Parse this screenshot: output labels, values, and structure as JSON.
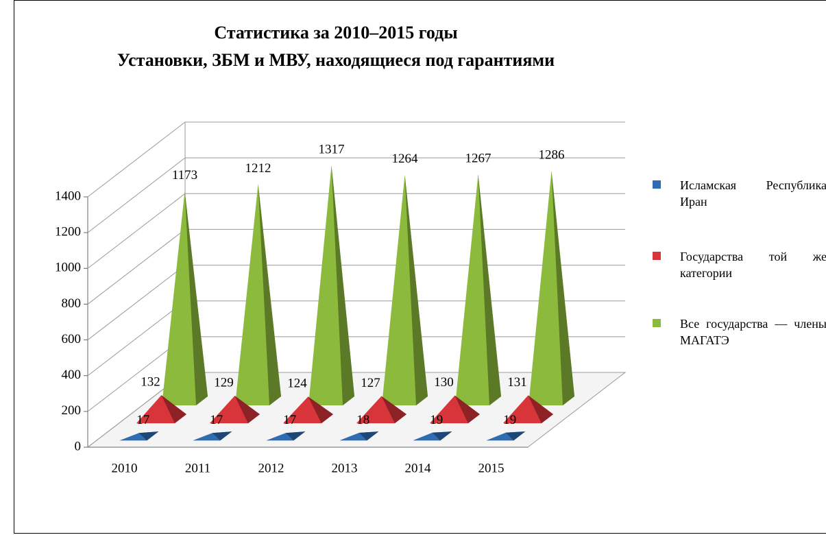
{
  "chart_data": {
    "type": "pyramid3d",
    "title": "Статистика за 2010–2015 годы",
    "subtitle": "Установки, ЗБМ и МВУ, находящиеся под гарантиями",
    "categories": [
      "2010",
      "2011",
      "2012",
      "2013",
      "2014",
      "2015"
    ],
    "series": [
      {
        "name": "Исламская Республика Иран",
        "color": "#2e6db4",
        "values": [
          17,
          17,
          17,
          18,
          19,
          19
        ]
      },
      {
        "name": "Государства той же категории",
        "color": "#d7353a",
        "values": [
          132,
          129,
          124,
          127,
          130,
          131
        ]
      },
      {
        "name": "Все государства — члены МАГАТЭ",
        "color": "#8cba3c",
        "values": [
          1173,
          1212,
          1317,
          1264,
          1267,
          1286
        ]
      }
    ],
    "ylim": [
      0,
      1400
    ],
    "yticks": [
      0,
      200,
      400,
      600,
      800,
      1000,
      1200,
      1400
    ],
    "grid": true
  }
}
